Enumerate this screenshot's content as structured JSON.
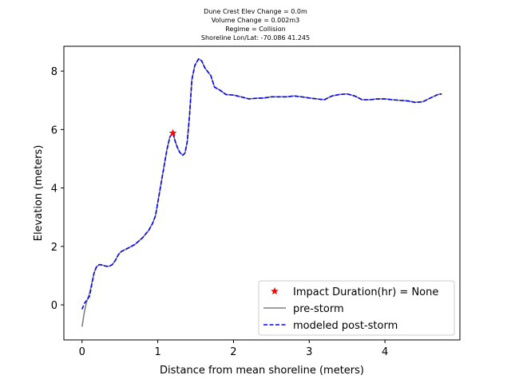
{
  "chart_data": {
    "type": "line",
    "title_lines": [
      "Dune Crest Elev Change = 0.0m",
      "Volume Change = 0.002m3",
      "Regime = Collision",
      "Shoreline Lon/Lat: -70.086 41.245"
    ],
    "xlabel": "Distance from mean shoreline (meters)",
    "ylabel": "Elevation (meters)",
    "xlim": [
      -0.24,
      4.99
    ],
    "ylim": [
      -1.2,
      8.85
    ],
    "xticks": [
      0,
      1,
      2,
      3,
      4
    ],
    "yticks": [
      0,
      2,
      4,
      6,
      8
    ],
    "grid": false,
    "legend_position": "lower-right",
    "series": [
      {
        "name": "pre-storm",
        "color": "#808080",
        "style": "solid",
        "points": [
          [
            0.0,
            -0.75
          ],
          [
            0.03,
            -0.25
          ],
          [
            0.06,
            0.1
          ],
          [
            0.1,
            0.4
          ],
          [
            0.13,
            0.75
          ],
          [
            0.16,
            1.1
          ],
          [
            0.19,
            1.3
          ],
          [
            0.23,
            1.38
          ],
          [
            0.27,
            1.36
          ],
          [
            0.32,
            1.32
          ],
          [
            0.36,
            1.32
          ],
          [
            0.4,
            1.38
          ],
          [
            0.44,
            1.52
          ],
          [
            0.48,
            1.72
          ],
          [
            0.52,
            1.83
          ],
          [
            0.6,
            1.93
          ],
          [
            0.7,
            2.07
          ],
          [
            0.8,
            2.3
          ],
          [
            0.88,
            2.55
          ],
          [
            0.93,
            2.78
          ],
          [
            0.97,
            3.05
          ],
          [
            1.0,
            3.5
          ],
          [
            1.04,
            4.1
          ],
          [
            1.08,
            4.7
          ],
          [
            1.12,
            5.3
          ],
          [
            1.16,
            5.75
          ],
          [
            1.2,
            5.88
          ],
          [
            1.23,
            5.6
          ],
          [
            1.26,
            5.38
          ],
          [
            1.29,
            5.22
          ],
          [
            1.33,
            5.12
          ],
          [
            1.36,
            5.2
          ],
          [
            1.39,
            5.6
          ],
          [
            1.42,
            6.5
          ],
          [
            1.45,
            7.7
          ],
          [
            1.49,
            8.2
          ],
          [
            1.54,
            8.42
          ],
          [
            1.58,
            8.35
          ],
          [
            1.62,
            8.12
          ],
          [
            1.66,
            7.98
          ],
          [
            1.7,
            7.85
          ],
          [
            1.75,
            7.45
          ],
          [
            1.82,
            7.35
          ],
          [
            1.9,
            7.2
          ],
          [
            2.0,
            7.18
          ],
          [
            2.1,
            7.12
          ],
          [
            2.2,
            7.05
          ],
          [
            2.3,
            7.07
          ],
          [
            2.4,
            7.08
          ],
          [
            2.5,
            7.12
          ],
          [
            2.6,
            7.12
          ],
          [
            2.7,
            7.12
          ],
          [
            2.8,
            7.15
          ],
          [
            2.9,
            7.12
          ],
          [
            3.0,
            7.08
          ],
          [
            3.1,
            7.05
          ],
          [
            3.2,
            7.02
          ],
          [
            3.3,
            7.15
          ],
          [
            3.4,
            7.2
          ],
          [
            3.5,
            7.22
          ],
          [
            3.6,
            7.15
          ],
          [
            3.7,
            7.02
          ],
          [
            3.8,
            7.02
          ],
          [
            3.9,
            7.05
          ],
          [
            4.0,
            7.05
          ],
          [
            4.1,
            7.02
          ],
          [
            4.2,
            7.0
          ],
          [
            4.3,
            6.98
          ],
          [
            4.4,
            6.93
          ],
          [
            4.5,
            6.95
          ],
          [
            4.6,
            7.08
          ],
          [
            4.7,
            7.2
          ],
          [
            4.75,
            7.22
          ]
        ]
      },
      {
        "name": "modeled post-storm",
        "color": "#0000ff",
        "style": "dashed",
        "points": [
          [
            0.0,
            -0.15
          ],
          [
            0.03,
            0.05
          ],
          [
            0.06,
            0.15
          ],
          [
            0.1,
            0.3
          ],
          [
            0.13,
            0.72
          ],
          [
            0.16,
            1.1
          ],
          [
            0.19,
            1.3
          ],
          [
            0.23,
            1.38
          ],
          [
            0.27,
            1.36
          ],
          [
            0.32,
            1.32
          ],
          [
            0.36,
            1.32
          ],
          [
            0.4,
            1.38
          ],
          [
            0.44,
            1.52
          ],
          [
            0.48,
            1.72
          ],
          [
            0.52,
            1.83
          ],
          [
            0.6,
            1.93
          ],
          [
            0.7,
            2.07
          ],
          [
            0.8,
            2.3
          ],
          [
            0.88,
            2.55
          ],
          [
            0.93,
            2.78
          ],
          [
            0.97,
            3.05
          ],
          [
            1.0,
            3.5
          ],
          [
            1.04,
            4.1
          ],
          [
            1.08,
            4.7
          ],
          [
            1.12,
            5.3
          ],
          [
            1.16,
            5.75
          ],
          [
            1.2,
            5.88
          ],
          [
            1.23,
            5.6
          ],
          [
            1.26,
            5.38
          ],
          [
            1.29,
            5.22
          ],
          [
            1.33,
            5.12
          ],
          [
            1.36,
            5.2
          ],
          [
            1.39,
            5.6
          ],
          [
            1.42,
            6.5
          ],
          [
            1.45,
            7.7
          ],
          [
            1.49,
            8.2
          ],
          [
            1.54,
            8.42
          ],
          [
            1.58,
            8.35
          ],
          [
            1.62,
            8.12
          ],
          [
            1.66,
            7.98
          ],
          [
            1.7,
            7.85
          ],
          [
            1.75,
            7.45
          ],
          [
            1.82,
            7.35
          ],
          [
            1.9,
            7.2
          ],
          [
            2.0,
            7.18
          ],
          [
            2.1,
            7.12
          ],
          [
            2.2,
            7.05
          ],
          [
            2.3,
            7.07
          ],
          [
            2.4,
            7.08
          ],
          [
            2.5,
            7.12
          ],
          [
            2.6,
            7.12
          ],
          [
            2.7,
            7.12
          ],
          [
            2.8,
            7.15
          ],
          [
            2.9,
            7.12
          ],
          [
            3.0,
            7.08
          ],
          [
            3.1,
            7.05
          ],
          [
            3.2,
            7.02
          ],
          [
            3.3,
            7.15
          ],
          [
            3.4,
            7.2
          ],
          [
            3.5,
            7.22
          ],
          [
            3.6,
            7.15
          ],
          [
            3.7,
            7.02
          ],
          [
            3.8,
            7.02
          ],
          [
            3.9,
            7.05
          ],
          [
            4.0,
            7.05
          ],
          [
            4.1,
            7.02
          ],
          [
            4.2,
            7.0
          ],
          [
            4.3,
            6.98
          ],
          [
            4.4,
            6.93
          ],
          [
            4.5,
            6.95
          ],
          [
            4.6,
            7.08
          ],
          [
            4.7,
            7.2
          ],
          [
            4.75,
            7.22
          ]
        ]
      }
    ],
    "markers": [
      {
        "name": "Impact Duration(hr) = None",
        "symbol": "star",
        "color": "#ff0000",
        "x": 1.2,
        "y": 5.88
      }
    ],
    "legend": [
      {
        "label": "Impact Duration(hr) = None",
        "kind": "star",
        "color": "#ff0000"
      },
      {
        "label": "pre-storm",
        "kind": "solid",
        "color": "#808080"
      },
      {
        "label": "modeled post-storm",
        "kind": "dashed",
        "color": "#0000ff"
      }
    ]
  }
}
